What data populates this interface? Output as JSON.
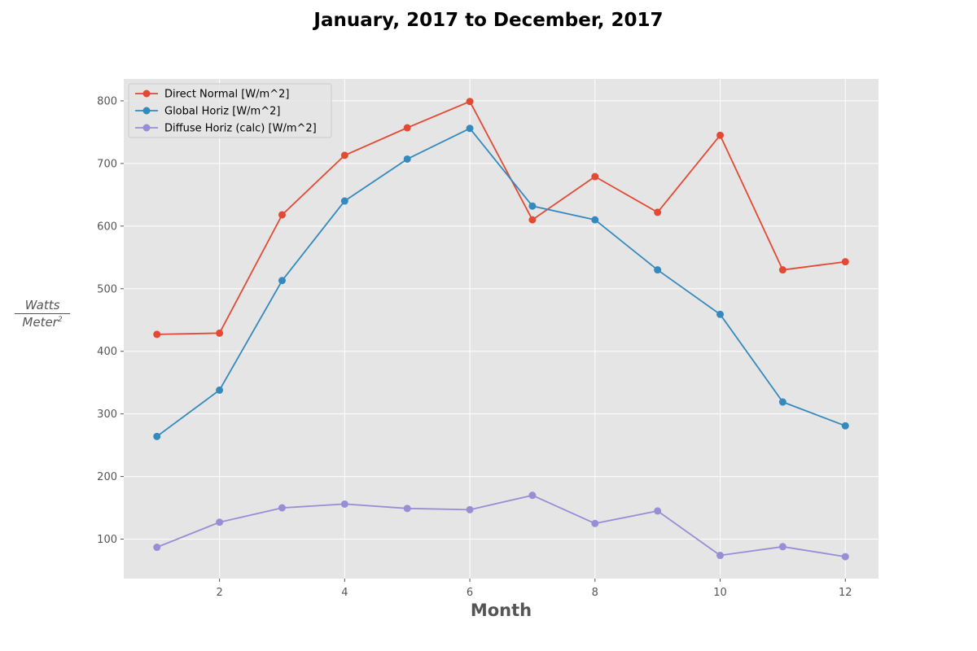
{
  "chart_data": {
    "type": "line",
    "title": "January, 2017 to December, 2017",
    "xlabel": "Month",
    "ylabel": {
      "numerator": "Watts",
      "denominator": "Meter",
      "exponent": "2"
    },
    "x": [
      1,
      2,
      3,
      4,
      5,
      6,
      7,
      8,
      9,
      10,
      11,
      12
    ],
    "xlim": [
      0.47,
      12.53
    ],
    "ylim": [
      37,
      835
    ],
    "xticks": [
      2,
      4,
      6,
      8,
      10,
      12
    ],
    "yticks": [
      100,
      200,
      300,
      400,
      500,
      600,
      700,
      800
    ],
    "grid": true,
    "legend_position": "top-left",
    "series": [
      {
        "name": "Direct Normal [W/m^2]",
        "color": "#E24A33",
        "values": [
          427,
          429,
          618,
          713,
          757,
          799,
          610,
          679,
          622,
          745,
          530,
          543
        ]
      },
      {
        "name": "Global Horiz [W/m^2]",
        "color": "#348ABD",
        "values": [
          264,
          338,
          513,
          640,
          707,
          756,
          632,
          610,
          530,
          459,
          319,
          281
        ]
      },
      {
        "name": "Diffuse Horiz (calc) [W/m^2]",
        "color": "#988ED5",
        "values": [
          87,
          127,
          150,
          156,
          149,
          147,
          170,
          125,
          145,
          74,
          88,
          72
        ]
      }
    ]
  }
}
